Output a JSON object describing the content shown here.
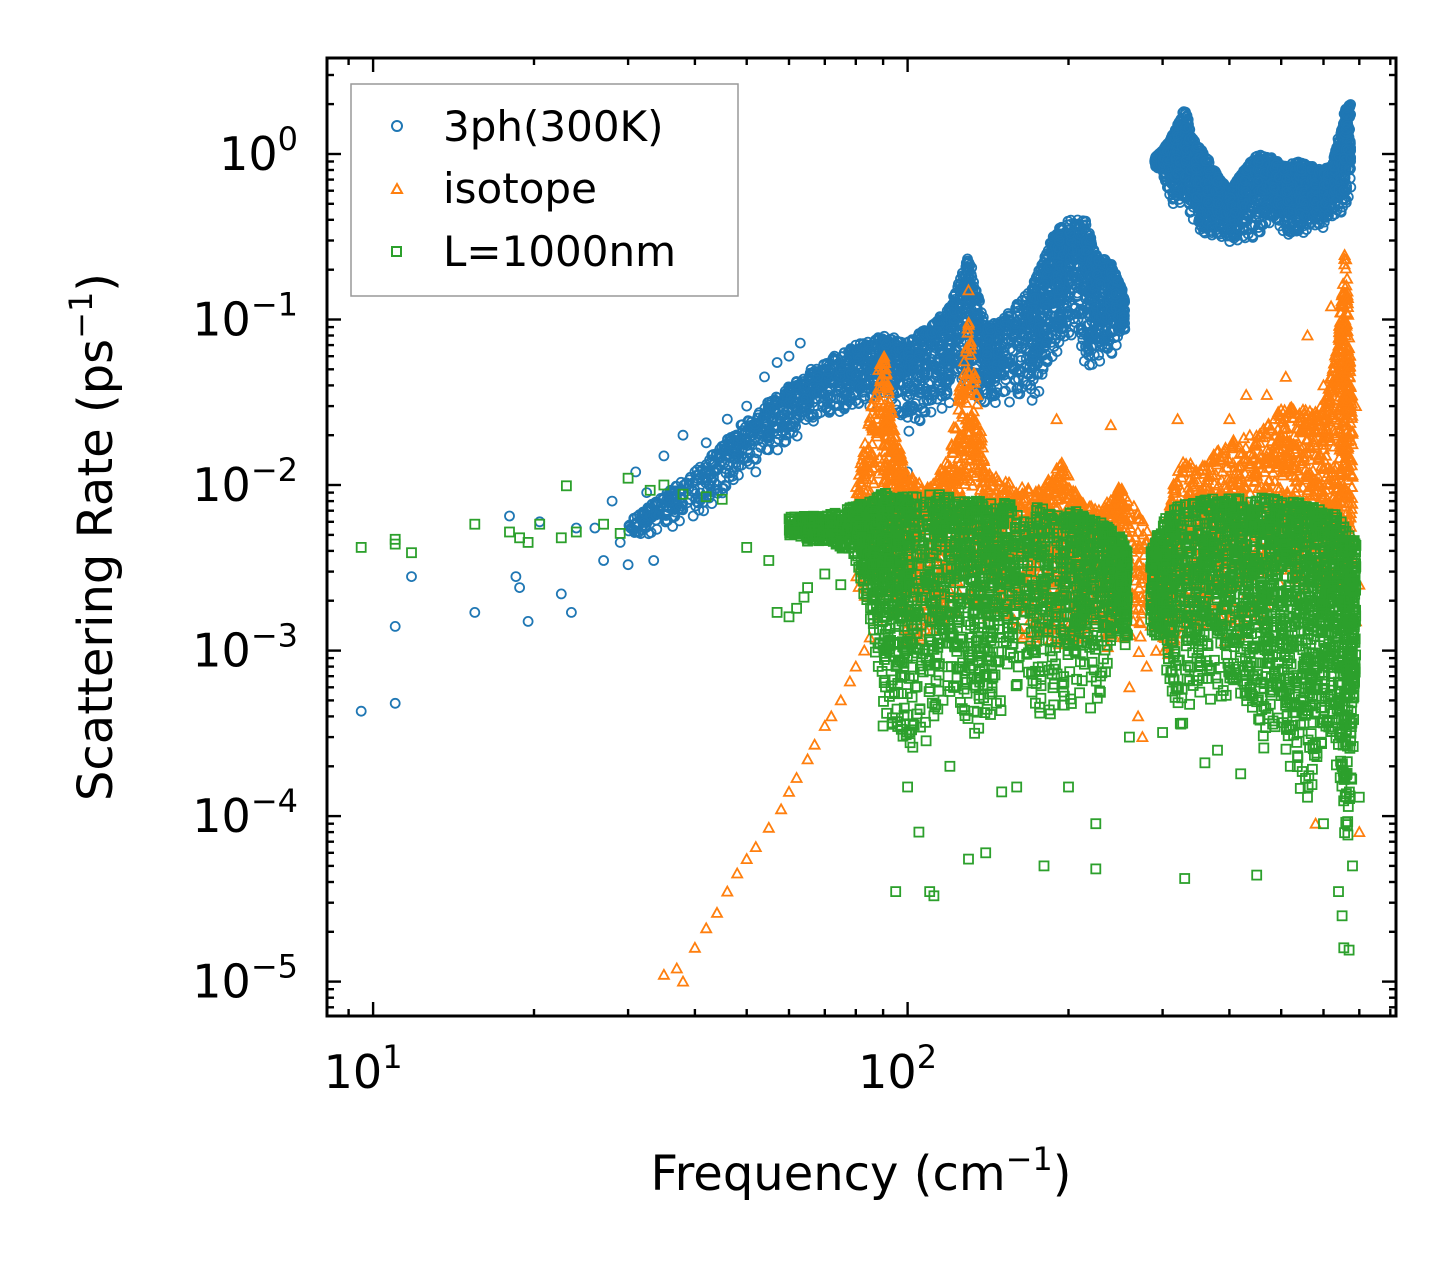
{
  "chart_data": {
    "type": "scatter",
    "title": "",
    "xlabel": "Frequency (cm",
    "xlabel_sup": "−1",
    "xlabel_end": ")",
    "ylabel": "Scattering Rate (ps",
    "ylabel_sup": "−1",
    "ylabel_end": ")",
    "xscale": "log",
    "yscale": "log",
    "xlim": [
      8.2,
      820
    ],
    "ylim": [
      6.2e-06,
      3.8
    ],
    "x_ticks": [
      {
        "value": 10,
        "base": "10",
        "exp": "1"
      },
      {
        "value": 100,
        "base": "10",
        "exp": "2"
      }
    ],
    "y_ticks": [
      {
        "value": 1e-05,
        "base": "10",
        "exp": "−5"
      },
      {
        "value": 0.0001,
        "base": "10",
        "exp": "−4"
      },
      {
        "value": 0.001,
        "base": "10",
        "exp": "−3"
      },
      {
        "value": 0.01,
        "base": "10",
        "exp": "−2"
      },
      {
        "value": 0.1,
        "base": "10",
        "exp": "−1"
      },
      {
        "value": 1,
        "base": "10",
        "exp": "0"
      }
    ],
    "legend_position": "top-left",
    "grid": false,
    "series": [
      {
        "name": "3ph(300K)",
        "color": "#1f77b4",
        "marker": "circle",
        "points": [
          [
            9.5,
            0.00043
          ],
          [
            11,
            0.00048
          ],
          [
            11,
            0.0014
          ],
          [
            11.8,
            0.0028
          ],
          [
            15.5,
            0.0017
          ],
          [
            18,
            0.0065
          ],
          [
            18.5,
            0.0028
          ],
          [
            18.8,
            0.0024
          ],
          [
            19.5,
            0.0015
          ],
          [
            20.5,
            0.006
          ],
          [
            22.5,
            0.0022
          ],
          [
            23.5,
            0.0017
          ],
          [
            24,
            0.0055
          ],
          [
            26,
            0.0055
          ],
          [
            27,
            0.0035
          ],
          [
            28,
            0.008
          ],
          [
            29,
            0.0045
          ],
          [
            30,
            0.0033
          ],
          [
            31,
            0.012
          ],
          [
            32.5,
            0.009
          ],
          [
            33.5,
            0.0035
          ],
          [
            35,
            0.015
          ],
          [
            36,
            0.008
          ],
          [
            38,
            0.02
          ],
          [
            40,
            0.012
          ],
          [
            42,
            0.018
          ],
          [
            44,
            0.01
          ],
          [
            46,
            0.025
          ],
          [
            48,
            0.015
          ],
          [
            50,
            0.03
          ],
          [
            52,
            0.012
          ],
          [
            54,
            0.045
          ],
          [
            55,
            0.02
          ],
          [
            57,
            0.055
          ],
          [
            58,
            0.03
          ],
          [
            60,
            0.06
          ],
          [
            62,
            0.04
          ],
          [
            63,
            0.072
          ],
          [
            66,
            0.05
          ],
          [
            68,
            0.045
          ],
          [
            70,
            0.035
          ],
          [
            73,
            0.06
          ],
          [
            75,
            0.05
          ],
          [
            78,
            0.04
          ],
          [
            80,
            0.07
          ],
          [
            85,
            0.03
          ],
          [
            90,
            0.045
          ],
          [
            95,
            0.015
          ],
          [
            100,
            0.012
          ]
        ],
        "band": [
          [
            30,
            0.0046,
            0.006
          ],
          [
            40,
            0.006,
            0.012
          ],
          [
            50,
            0.012,
            0.025
          ],
          [
            60,
            0.018,
            0.04
          ],
          [
            70,
            0.025,
            0.055
          ],
          [
            80,
            0.03,
            0.07
          ],
          [
            90,
            0.035,
            0.08
          ],
          [
            100,
            0.02,
            0.075
          ],
          [
            110,
            0.025,
            0.09
          ],
          [
            120,
            0.03,
            0.12
          ],
          [
            130,
            0.035,
            0.25
          ],
          [
            140,
            0.03,
            0.09
          ],
          [
            150,
            0.03,
            0.1
          ],
          [
            170,
            0.03,
            0.15
          ],
          [
            180,
            0.04,
            0.24
          ],
          [
            190,
            0.06,
            0.35
          ],
          [
            200,
            0.08,
            0.4
          ],
          [
            215,
            0.05,
            0.4
          ],
          [
            225,
            0.05,
            0.25
          ],
          [
            240,
            0.06,
            0.22
          ],
          [
            255,
            0.08,
            0.14
          ]
        ],
        "band2": [
          [
            290,
            0.85,
            0.95
          ],
          [
            300,
            0.75,
            1.05
          ],
          [
            315,
            0.45,
            1.35
          ],
          [
            330,
            0.5,
            1.9
          ],
          [
            345,
            0.35,
            1.2
          ],
          [
            360,
            0.3,
            1.0
          ],
          [
            380,
            0.3,
            0.75
          ],
          [
            400,
            0.28,
            0.6
          ],
          [
            420,
            0.3,
            0.75
          ],
          [
            450,
            0.3,
            1.0
          ],
          [
            480,
            0.4,
            0.95
          ],
          [
            510,
            0.3,
            0.85
          ],
          [
            540,
            0.32,
            0.9
          ],
          [
            570,
            0.35,
            0.85
          ],
          [
            600,
            0.35,
            0.8
          ],
          [
            625,
            0.4,
            0.9
          ],
          [
            655,
            0.45,
            1.8
          ],
          [
            675,
            0.6,
            2.1
          ]
        ]
      },
      {
        "name": "isotope",
        "color": "#ff7f0e",
        "marker": "triangle",
        "points": [
          [
            35,
            1.1e-05
          ],
          [
            37,
            1.2e-05
          ],
          [
            38,
            1e-05
          ],
          [
            40,
            1.6e-05
          ],
          [
            42,
            2.1e-05
          ],
          [
            44,
            2.6e-05
          ],
          [
            46,
            3.5e-05
          ],
          [
            48,
            4.5e-05
          ],
          [
            50,
            5.5e-05
          ],
          [
            52,
            6.5e-05
          ],
          [
            55,
            8.5e-05
          ],
          [
            58,
            0.00011
          ],
          [
            60,
            0.00014
          ],
          [
            62,
            0.00017
          ],
          [
            65,
            0.00022
          ],
          [
            67,
            0.00027
          ],
          [
            70,
            0.00035
          ],
          [
            72,
            0.0004
          ],
          [
            75,
            0.0005
          ],
          [
            78,
            0.00065
          ],
          [
            80,
            0.0008
          ],
          [
            83,
            0.001
          ],
          [
            85,
            0.0012
          ],
          [
            88,
            0.0015
          ],
          [
            90,
            0.002
          ],
          [
            95,
            0.0025
          ],
          [
            100,
            0.003
          ],
          [
            110,
            0.003
          ],
          [
            120,
            0.004
          ],
          [
            127,
            0.02
          ],
          [
            130,
            0.15
          ],
          [
            135,
            0.035
          ],
          [
            155,
            0.007
          ],
          [
            170,
            0.007
          ],
          [
            190,
            0.025
          ],
          [
            210,
            0.008
          ],
          [
            240,
            0.023
          ],
          [
            250,
            0.004
          ],
          [
            260,
            0.0006
          ],
          [
            270,
            0.0004
          ],
          [
            275,
            0.0003
          ],
          [
            280,
            0.0008
          ],
          [
            320,
            0.025
          ],
          [
            360,
            0.013
          ],
          [
            400,
            0.025
          ],
          [
            430,
            0.035
          ],
          [
            470,
            0.035
          ],
          [
            510,
            0.045
          ],
          [
            560,
            0.08
          ],
          [
            600,
            0.04
          ],
          [
            620,
            0.12
          ],
          [
            650,
            0.1
          ],
          [
            670,
            0.05
          ],
          [
            690,
            0.03
          ],
          [
            690,
            0.0015
          ],
          [
            700,
            8e-05
          ],
          [
            580,
            9e-05
          ],
          [
            700,
            0.0025
          ]
        ],
        "band": [
          [
            80,
            0.002,
            0.01
          ],
          [
            90,
            0.002,
            0.07
          ],
          [
            95,
            0.0015,
            0.02
          ],
          [
            100,
            0.001,
            0.012
          ],
          [
            110,
            0.001,
            0.01
          ],
          [
            120,
            0.0015,
            0.015
          ],
          [
            130,
            0.002,
            0.1
          ],
          [
            140,
            0.0015,
            0.012
          ],
          [
            160,
            0.001,
            0.01
          ],
          [
            180,
            0.001,
            0.01
          ],
          [
            195,
            0.001,
            0.014
          ],
          [
            210,
            0.001,
            0.008
          ],
          [
            230,
            0.001,
            0.007
          ],
          [
            250,
            0.001,
            0.01
          ],
          [
            300,
            0.0008,
            0.004
          ],
          [
            320,
            0.001,
            0.015
          ],
          [
            360,
            0.001,
            0.013
          ],
          [
            400,
            0.001,
            0.02
          ],
          [
            450,
            0.0015,
            0.02
          ],
          [
            500,
            0.0015,
            0.03
          ],
          [
            550,
            0.002,
            0.03
          ],
          [
            600,
            0.002,
            0.03
          ],
          [
            640,
            0.002,
            0.08
          ],
          [
            660,
            0.002,
            0.3
          ],
          [
            680,
            0.003,
            0.03
          ]
        ]
      },
      {
        "name": "L=1000nm",
        "color": "#2ca02c",
        "marker": "square",
        "points": [
          [
            9.5,
            0.0042
          ],
          [
            11,
            0.0047
          ],
          [
            11,
            0.0044
          ],
          [
            11.8,
            0.0039
          ],
          [
            15.5,
            0.0058
          ],
          [
            18,
            0.0052
          ],
          [
            18.8,
            0.0048
          ],
          [
            19.5,
            0.0045
          ],
          [
            20.5,
            0.0058
          ],
          [
            22.5,
            0.0048
          ],
          [
            23,
            0.0099
          ],
          [
            24,
            0.0052
          ],
          [
            27,
            0.0058
          ],
          [
            29,
            0.0051
          ],
          [
            30,
            0.011
          ],
          [
            33,
            0.0093
          ],
          [
            35,
            0.01
          ],
          [
            38,
            0.0088
          ],
          [
            42,
            0.0085
          ],
          [
            45,
            0.0082
          ],
          [
            50,
            0.0042
          ],
          [
            55,
            0.0035
          ],
          [
            57,
            0.0017
          ],
          [
            60,
            0.0016
          ],
          [
            62,
            0.0018
          ],
          [
            64,
            0.0021
          ],
          [
            65,
            0.0024
          ],
          [
            70,
            0.0029
          ],
          [
            75,
            0.0025
          ],
          [
            80,
            0.0035
          ],
          [
            90,
            0.00035
          ],
          [
            95,
            3.5e-05
          ],
          [
            100,
            0.00015
          ],
          [
            105,
            8e-05
          ],
          [
            110,
            3.5e-05
          ],
          [
            112,
            3.3e-05
          ],
          [
            120,
            0.0002
          ],
          [
            130,
            5.5e-05
          ],
          [
            140,
            6e-05
          ],
          [
            150,
            0.00014
          ],
          [
            160,
            0.00015
          ],
          [
            180,
            5e-05
          ],
          [
            200,
            0.00015
          ],
          [
            220,
            0.00045
          ],
          [
            225,
            9e-05
          ],
          [
            225,
            4.8e-05
          ],
          [
            260,
            0.0003
          ],
          [
            300,
            0.00032
          ],
          [
            330,
            4.2e-05
          ],
          [
            360,
            0.00021
          ],
          [
            380,
            0.00025
          ],
          [
            420,
            0.00018
          ],
          [
            450,
            4.4e-05
          ],
          [
            520,
            0.0002
          ],
          [
            560,
            0.00013
          ],
          [
            600,
            9e-05
          ],
          [
            640,
            3.5e-05
          ],
          [
            650,
            2.5e-05
          ],
          [
            655,
            1.6e-05
          ],
          [
            670,
            1.55e-05
          ],
          [
            680,
            5e-05
          ],
          [
            700,
            0.00013
          ]
        ],
        "band": [
          [
            60,
            0.0045,
            0.0065
          ],
          [
            70,
            0.0045,
            0.0065
          ],
          [
            80,
            0.0035,
            0.0075
          ],
          [
            85,
            0.0013,
            0.008
          ],
          [
            90,
            0.0004,
            0.009
          ],
          [
            95,
            0.0003,
            0.0085
          ],
          [
            100,
            0.0002,
            0.0085
          ],
          [
            110,
            0.0003,
            0.009
          ],
          [
            120,
            0.0004,
            0.0085
          ],
          [
            130,
            0.0003,
            0.008
          ],
          [
            140,
            0.0003,
            0.0085
          ],
          [
            150,
            0.0004,
            0.008
          ],
          [
            170,
            0.0004,
            0.0075
          ],
          [
            190,
            0.0004,
            0.007
          ],
          [
            210,
            0.0005,
            0.007
          ],
          [
            230,
            0.0005,
            0.006
          ],
          [
            250,
            0.0015,
            0.005
          ],
          [
            258,
            0.0008,
            0.004
          ]
        ],
        "band2": [
          [
            285,
            0.0012,
            0.004
          ],
          [
            300,
            0.001,
            0.006
          ],
          [
            320,
            0.0003,
            0.0075
          ],
          [
            350,
            0.0005,
            0.008
          ],
          [
            380,
            0.0004,
            0.0085
          ],
          [
            410,
            0.0005,
            0.0085
          ],
          [
            440,
            0.0004,
            0.008
          ],
          [
            470,
            0.0002,
            0.0085
          ],
          [
            500,
            0.0003,
            0.008
          ],
          [
            530,
            0.00015,
            0.008
          ],
          [
            560,
            0.0001,
            0.0075
          ],
          [
            590,
            0.0002,
            0.0075
          ],
          [
            620,
            0.0002,
            0.007
          ],
          [
            650,
            8e-05,
            0.006
          ],
          [
            670,
            6e-05,
            0.005
          ],
          [
            690,
            0.0004,
            0.0045
          ]
        ]
      }
    ]
  }
}
